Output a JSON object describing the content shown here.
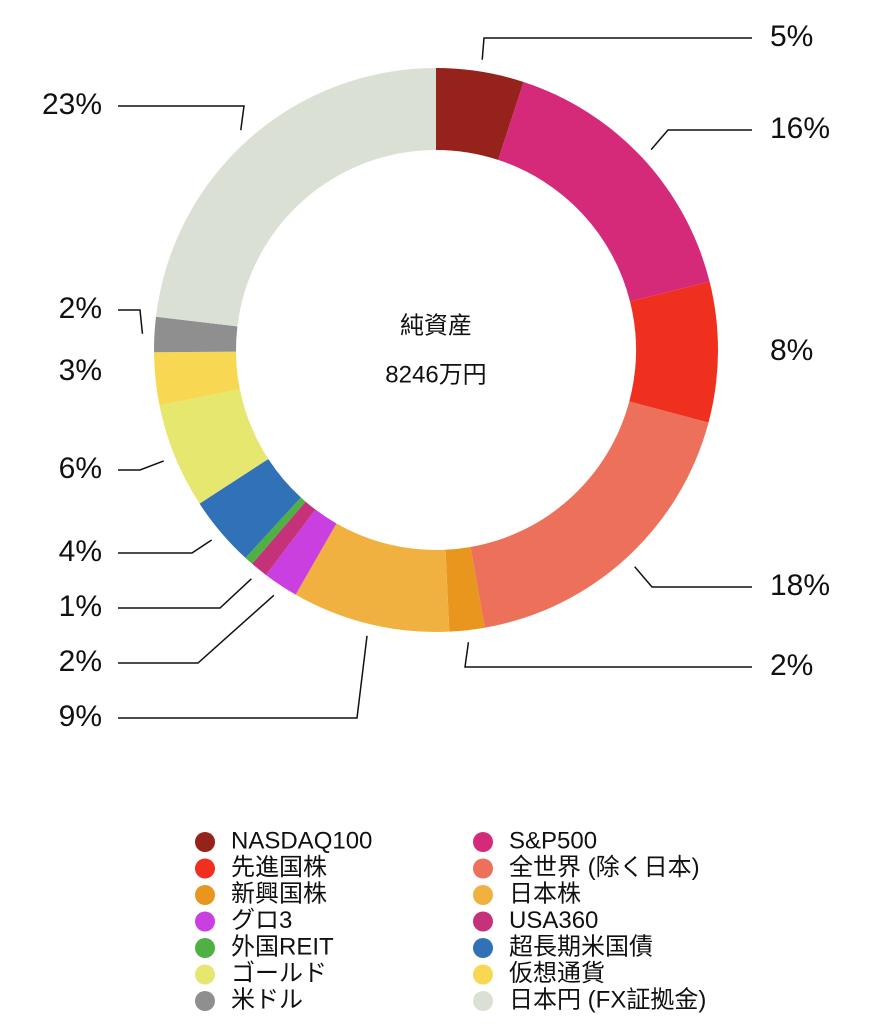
{
  "chart_data": {
    "type": "donut",
    "center_title": "純資産",
    "center_value": "8246万円",
    "categories": [
      "NASDAQ100",
      "S&P500",
      "先進国株",
      "全世界 (除く日本)",
      "新興国株",
      "日本株",
      "グロ3",
      "USA360",
      "外国REIT",
      "超長期米国債",
      "ゴールド",
      "仮想通貨",
      "米ドル",
      "日本円 (FX証拠金)"
    ],
    "values": [
      5,
      16,
      8,
      18,
      2,
      9,
      2,
      1,
      0.5,
      4,
      6,
      3,
      2,
      23
    ],
    "value_labels": [
      "5%",
      "16%",
      "8%",
      "18%",
      "2%",
      "9%",
      "2%",
      "1%",
      null,
      "4%",
      "6%",
      "3%",
      "2%",
      "23%"
    ],
    "colors": [
      "#95221b",
      "#d52a7a",
      "#f0301f",
      "#ec705a",
      "#e8961e",
      "#f1b140",
      "#c93fe0",
      "#c5327a",
      "#4fb043",
      "#3171b7",
      "#e5e76f",
      "#f8d852",
      "#8f8f8f",
      "#dbe0d4"
    ],
    "legend": "bottom"
  }
}
